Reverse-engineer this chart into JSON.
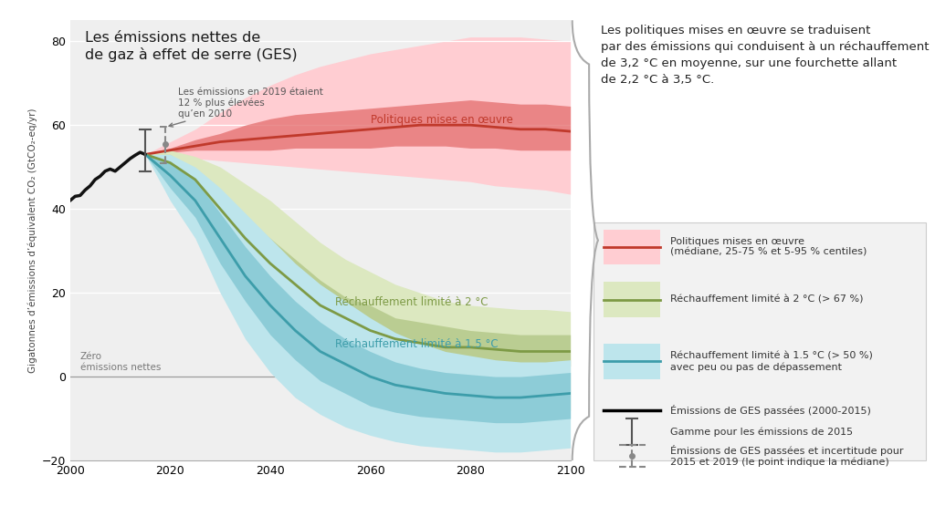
{
  "title": "Les émissions nettes de\nde gaz à effet de serre (GES)",
  "ylabel": "Gigatonnes d’émissions d’équivalent CO₂ (GtCO₂-eq/yr)",
  "ylim": [
    -20,
    85
  ],
  "xlim": [
    2000,
    2100
  ],
  "yticks": [
    -20,
    0,
    20,
    40,
    60,
    80
  ],
  "xticks": [
    2000,
    2020,
    2040,
    2060,
    2080,
    2100
  ],
  "background_color": "#ffffff",
  "plot_bg_color": "#efefef",
  "historical_years": [
    2000,
    2001,
    2002,
    2003,
    2004,
    2005,
    2006,
    2007,
    2008,
    2009,
    2010,
    2011,
    2012,
    2013,
    2014,
    2015
  ],
  "historical_values": [
    42,
    43,
    43.2,
    44.5,
    45.5,
    47,
    47.8,
    49,
    49.5,
    49,
    50,
    51,
    52,
    52.8,
    53.5,
    53
  ],
  "proj_years": [
    2015,
    2020,
    2025,
    2030,
    2035,
    2040,
    2045,
    2050,
    2055,
    2060,
    2065,
    2070,
    2075,
    2080,
    2085,
    2090,
    2095,
    2100
  ],
  "policies_median": [
    53,
    54,
    55,
    56,
    56.5,
    57,
    57.5,
    58,
    58.5,
    59,
    59.5,
    60,
    60,
    60,
    59.5,
    59,
    59,
    58.5
  ],
  "policies_p25": [
    53,
    53.5,
    54,
    54,
    54,
    54,
    54.5,
    54.5,
    54.5,
    54.5,
    55,
    55,
    55,
    54.5,
    54.5,
    54,
    54,
    54
  ],
  "policies_p75": [
    53,
    54.5,
    56.5,
    58,
    60,
    61.5,
    62.5,
    63,
    63.5,
    64,
    64.5,
    65,
    65.5,
    66,
    65.5,
    65,
    65,
    64.5
  ],
  "policies_p05": [
    53,
    52.5,
    52,
    51.5,
    51,
    50.5,
    50,
    49.5,
    49,
    48.5,
    48,
    47.5,
    47,
    46.5,
    45.5,
    45,
    44.5,
    43.5
  ],
  "policies_p95": [
    53,
    56,
    59,
    63,
    66.5,
    69.5,
    72,
    74,
    75.5,
    77,
    78,
    79,
    80,
    81,
    81,
    81,
    80.5,
    80
  ],
  "two_deg_median": [
    53,
    51,
    47,
    40,
    33,
    27,
    22,
    17,
    14,
    11,
    9,
    8,
    7,
    7,
    6.5,
    6,
    6,
    6
  ],
  "two_deg_p25": [
    53,
    49,
    44,
    36,
    28,
    22,
    17,
    13,
    10,
    7,
    5.5,
    4.5,
    4,
    3.5,
    3,
    3,
    2.5,
    2.5
  ],
  "two_deg_p75": [
    53,
    53,
    49,
    44,
    38,
    33,
    28,
    23,
    19,
    17,
    14,
    13,
    12,
    11,
    10.5,
    10,
    10,
    10
  ],
  "two_deg_p05": [
    53,
    47,
    40,
    30,
    22,
    15,
    9,
    4,
    1,
    -2,
    -4,
    -5,
    -6,
    -7,
    -7.5,
    -8,
    -8,
    -8
  ],
  "two_deg_p95": [
    53,
    54,
    52.5,
    50,
    46,
    42,
    37,
    32,
    28,
    25,
    22,
    20,
    18,
    17,
    16.5,
    16,
    16,
    15.5
  ],
  "one5_deg_median": [
    53,
    48,
    42,
    33,
    24,
    17,
    11,
    6,
    3,
    0,
    -2,
    -3,
    -4,
    -4.5,
    -5,
    -5,
    -4.5,
    -4
  ],
  "one5_deg_p25": [
    53,
    45,
    38,
    27,
    18,
    10,
    4,
    -1,
    -4,
    -7,
    -8.5,
    -9.5,
    -10,
    -10.5,
    -11,
    -11,
    -10.5,
    -10
  ],
  "one5_deg_p75": [
    53,
    51,
    47,
    39,
    31,
    24,
    18,
    13,
    9,
    6,
    3.5,
    2,
    1,
    0.5,
    0,
    0,
    0.5,
    1
  ],
  "one5_deg_p05": [
    53,
    42,
    33,
    20,
    9,
    1,
    -5,
    -9,
    -12,
    -14,
    -15.5,
    -16.5,
    -17,
    -17.5,
    -18,
    -18,
    -17.5,
    -17
  ],
  "one5_deg_p95": [
    53,
    53,
    50,
    45,
    39,
    33,
    27,
    22,
    18,
    14,
    10.5,
    8,
    6,
    5,
    4,
    3.5,
    3.5,
    4
  ],
  "color_policies_line": "#c0392b",
  "color_policies_band1": "#e57373",
  "color_policies_band2": "#ffcdd2",
  "color_2deg_line": "#7d9a45",
  "color_2deg_band1": "#b5c98a",
  "color_2deg_band2": "#dce8c0",
  "color_15deg_line": "#3d9daa",
  "color_15deg_band1": "#85c8d4",
  "color_15deg_band2": "#bde5ec",
  "color_historical": "#111111",
  "annotation_2019_text": "Les émissions en 2019 étaient\n12 % plus élevées\nqu’en 2010",
  "zero_label": "Zéro\némissions nettes",
  "right_text": "Les politiques mises en œuvre se traduisent\npar des émissions qui conduisent à un réchauffement\nde 3,2 °C en moyenne, sur une fourchette allant\nde 2,2 °C à 3,5 °C.",
  "legend_entries": [
    "Politiques mises en œuvre\n(médiane, 25-75 % et 5-95 % centiles)",
    "Réchauffement limité à 2 °C (> 67 %)",
    "Réchauffement limité à 1.5 °C (> 50 %)\navec peu ou pas de dépassement",
    "Émissions de GES passées (2000-2015)",
    "Gamme pour les émissions de 2015",
    "Émissions de GES passées et incertitude pour\n2015 et 2019 (le point indique la médiane)"
  ],
  "label_policies": "Politiques mises en œuvre",
  "label_2deg": "Réchauffement limité à 2 °C",
  "label_15deg": "Réchauffement limité à 1.5 °C"
}
